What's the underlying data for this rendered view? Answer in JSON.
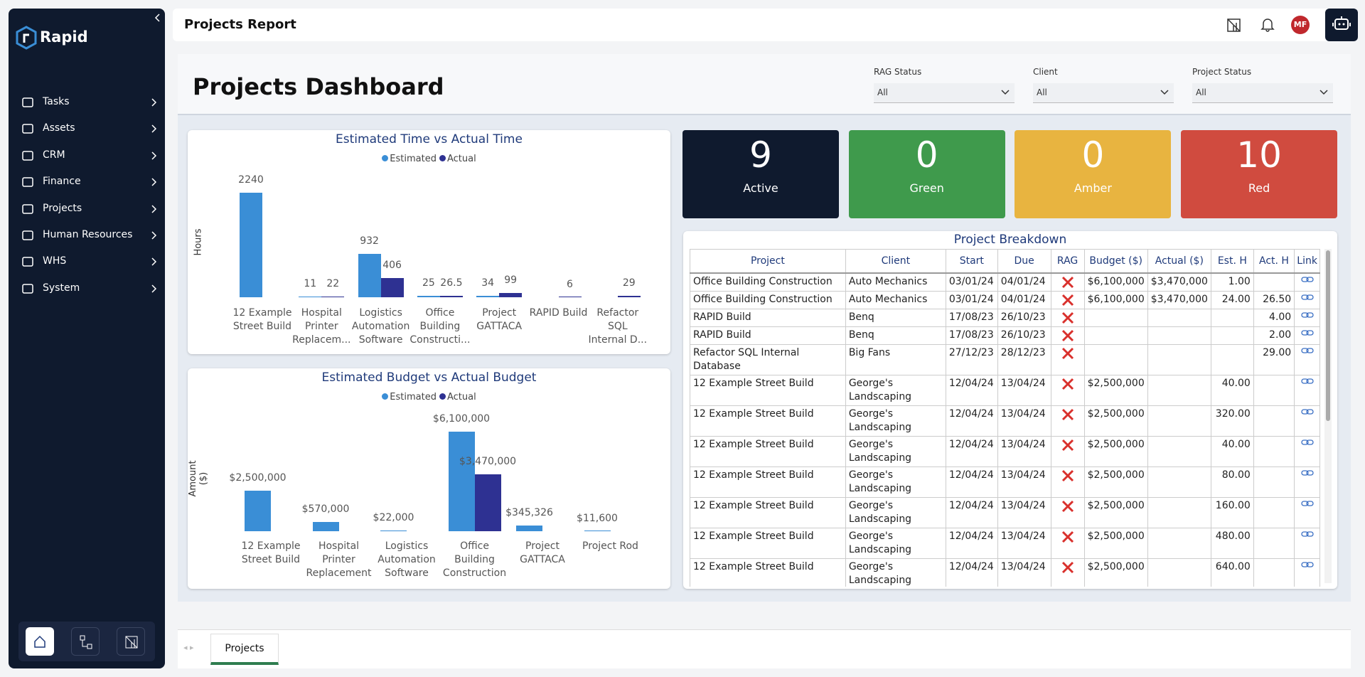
{
  "sidebar": {
    "logo": "Rapid",
    "nav": [
      "Tasks",
      "Assets",
      "CRM",
      "Finance",
      "Projects",
      "Human Resources",
      "WHS",
      "System"
    ]
  },
  "topbar": {
    "title": "Projects Report",
    "avatar": "MF"
  },
  "dashboard": {
    "title": "Projects Dashboard",
    "filters": [
      {
        "label": "RAG Status",
        "value": "All"
      },
      {
        "label": "Client",
        "value": "All"
      },
      {
        "label": "Project Status",
        "value": "All"
      }
    ]
  },
  "time_chart": {
    "type": "bar",
    "title": "Estimated Time vs Actual Time",
    "y_label": "Hours",
    "categories": [
      "12 Example Street Build",
      "Hospital Printer Replacem...",
      "Logistics Automation Software",
      "Office Building Constructi...",
      "Project GATTACA",
      "RAPID Build",
      "Refactor SQL Internal D..."
    ],
    "series": [
      {
        "name": "Estimated",
        "color": "#3a8ed6",
        "values": [
          2240,
          11,
          932,
          25,
          34,
          null,
          null
        ]
      },
      {
        "name": "Actual",
        "color": "#2e3192",
        "values": [
          null,
          22,
          406,
          26.5,
          99,
          6,
          29
        ]
      }
    ]
  },
  "budget_chart": {
    "type": "bar",
    "title": "Estimated Budget vs Actual Budget",
    "y_label": "Amount ($)",
    "categories": [
      "12 Example Street Build",
      "Hospital Printer Replacement",
      "Logistics Automation Software",
      "Office Building Construction",
      "Project GATTACA",
      "Project Rod"
    ],
    "series": [
      {
        "name": "Estimated",
        "color": "#3a8ed6",
        "values": [
          2500000,
          570000,
          22000,
          6100000,
          345326,
          11600
        ],
        "value_labels": [
          "$2,500,000",
          "$570,000",
          "$22,000",
          "$6,100,000",
          "$345,326",
          "$11,600"
        ]
      },
      {
        "name": "Actual",
        "color": "#2e3192",
        "values": [
          null,
          null,
          null,
          3470000,
          null,
          null
        ],
        "value_labels": [
          null,
          null,
          null,
          "$3,470,000",
          null,
          null
        ]
      }
    ]
  },
  "kpis": [
    {
      "value": 9,
      "label": "Active",
      "color": "#0f1a2e"
    },
    {
      "value": 0,
      "label": "Green",
      "color": "#3f9a4c"
    },
    {
      "value": 0,
      "label": "Amber",
      "color": "#e8b440"
    },
    {
      "value": 10,
      "label": "Red",
      "color": "#d04b3f"
    }
  ],
  "table": {
    "title": "Project Breakdown",
    "columns": [
      "Project",
      "Client",
      "Start",
      "Due",
      "RAG",
      "Budget ($)",
      "Actual ($)",
      "Est. H",
      "Act. H",
      "Link"
    ],
    "rows": [
      [
        "Office Building Construction",
        "Auto Mechanics",
        "03/01/24",
        "04/01/24",
        null,
        "$6,100,000",
        "$3,470,000",
        "1.00",
        null,
        null
      ],
      [
        "Office Building Construction",
        "Auto Mechanics",
        "03/01/24",
        "04/01/24",
        null,
        "$6,100,000",
        "$3,470,000",
        "24.00",
        "26.50",
        null
      ],
      [
        "RAPID Build",
        "Benq",
        "17/08/23",
        "26/10/23",
        null,
        null,
        null,
        null,
        "4.00",
        null
      ],
      [
        "RAPID Build",
        "Benq",
        "17/08/23",
        "26/10/23",
        null,
        null,
        null,
        null,
        "2.00",
        null
      ],
      [
        "Refactor SQL Internal Database",
        "Big Fans",
        "27/12/23",
        "28/12/23",
        null,
        null,
        null,
        null,
        "29.00",
        null
      ],
      [
        "12 Example Street Build",
        "George's Landscaping",
        "12/04/24",
        "13/04/24",
        null,
        "$2,500,000",
        null,
        "40.00",
        null,
        null
      ],
      [
        "12 Example Street Build",
        "George's Landscaping",
        "12/04/24",
        "13/04/24",
        null,
        "$2,500,000",
        null,
        "320.00",
        null,
        null
      ],
      [
        "12 Example Street Build",
        "George's Landscaping",
        "12/04/24",
        "13/04/24",
        null,
        "$2,500,000",
        null,
        "40.00",
        null,
        null
      ],
      [
        "12 Example Street Build",
        "George's Landscaping",
        "12/04/24",
        "13/04/24",
        null,
        "$2,500,000",
        null,
        "80.00",
        null,
        null
      ],
      [
        "12 Example Street Build",
        "George's Landscaping",
        "12/04/24",
        "13/04/24",
        null,
        "$2,500,000",
        null,
        "160.00",
        null,
        null
      ],
      [
        "12 Example Street Build",
        "George's Landscaping",
        "12/04/24",
        "13/04/24",
        null,
        "$2,500,000",
        null,
        "480.00",
        null,
        null
      ],
      [
        "12 Example Street Build",
        "George's Landscaping",
        "12/04/24",
        "13/04/24",
        null,
        "$2,500,000",
        null,
        "640.00",
        null,
        null
      ]
    ]
  },
  "tabs": [
    "Projects"
  ]
}
